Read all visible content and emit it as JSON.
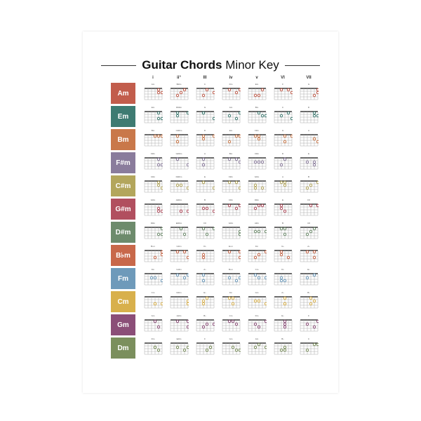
{
  "title": {
    "bold": "Guitar Chords",
    "rest": "Minor Key"
  },
  "degrees": [
    "i",
    "ii°",
    "III",
    "iv",
    "v",
    "VI",
    "VII"
  ],
  "keys": [
    {
      "key": "Am",
      "color": "#c25d4c",
      "chords": [
        "Am",
        "Bdim",
        "C",
        "Dm",
        "Em",
        "F",
        "G"
      ]
    },
    {
      "key": "Em",
      "color": "#3e7b72",
      "chords": [
        "Em",
        "F#dim",
        "G",
        "Am",
        "Bm",
        "C",
        "D"
      ]
    },
    {
      "key": "Bm",
      "color": "#c9784a",
      "chords": [
        "Bm",
        "C#dim",
        "D",
        "Em",
        "F#m",
        "G",
        "A"
      ]
    },
    {
      "key": "F#m",
      "color": "#8a7c9c",
      "chords": [
        "F#m",
        "G#dim",
        "A",
        "Bm",
        "C#m",
        "D",
        "E"
      ]
    },
    {
      "key": "C#m",
      "color": "#b3a65c",
      "chords": [
        "C#m",
        "D#dim",
        "E",
        "F#m",
        "G#m",
        "A",
        "B"
      ]
    },
    {
      "key": "G#m",
      "color": "#b14f5f",
      "chords": [
        "G#m",
        "A#dim",
        "B",
        "C#m",
        "D#m",
        "E",
        "F#"
      ]
    },
    {
      "key": "D#m",
      "color": "#6d8b6c",
      "chords": [
        "D#m",
        "E#dim",
        "F#",
        "G#m",
        "A#m",
        "B",
        "C#"
      ]
    },
    {
      "key": "B♭m",
      "color": "#c8684a",
      "chords": [
        "B♭m",
        "Cdim",
        "D♭",
        "E♭m",
        "Fm",
        "G♭",
        "A♭"
      ]
    },
    {
      "key": "Fm",
      "color": "#6e9aba",
      "chords": [
        "Fm",
        "Gdim",
        "A♭",
        "B♭m",
        "Cm",
        "D♭",
        "E♭"
      ]
    },
    {
      "key": "Cm",
      "color": "#d8b04c",
      "chords": [
        "Cm",
        "Ddim",
        "E♭",
        "Fm",
        "Gm",
        "A♭",
        "B♭"
      ]
    },
    {
      "key": "Gm",
      "color": "#8b4e78",
      "chords": [
        "Gm",
        "Adim",
        "B♭",
        "Cm",
        "Dm",
        "E♭",
        "F"
      ]
    },
    {
      "key": "Dm",
      "color": "#7b8f5d",
      "chords": [
        "Dm",
        "Edim",
        "F",
        "Gm",
        "Am",
        "B♭",
        "C"
      ]
    }
  ]
}
